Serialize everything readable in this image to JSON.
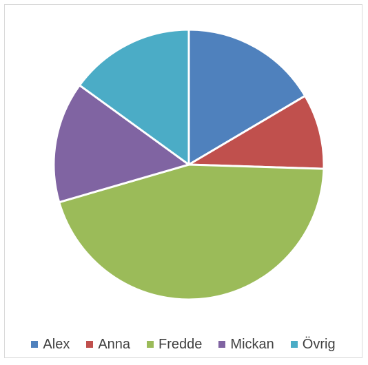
{
  "chart_data": {
    "type": "pie",
    "title": "",
    "legend_position": "bottom",
    "slices": [
      {
        "label": "Alex",
        "value": 16.5,
        "color": "#4F81BD"
      },
      {
        "label": "Anna",
        "value": 9.0,
        "color": "#C0504D"
      },
      {
        "label": "Fredde",
        "value": 45.0,
        "color": "#9BBB59"
      },
      {
        "label": "Mickan",
        "value": 14.5,
        "color": "#8064A2"
      },
      {
        "label": "Övrig",
        "value": 15.0,
        "color": "#4BACC6"
      }
    ]
  }
}
